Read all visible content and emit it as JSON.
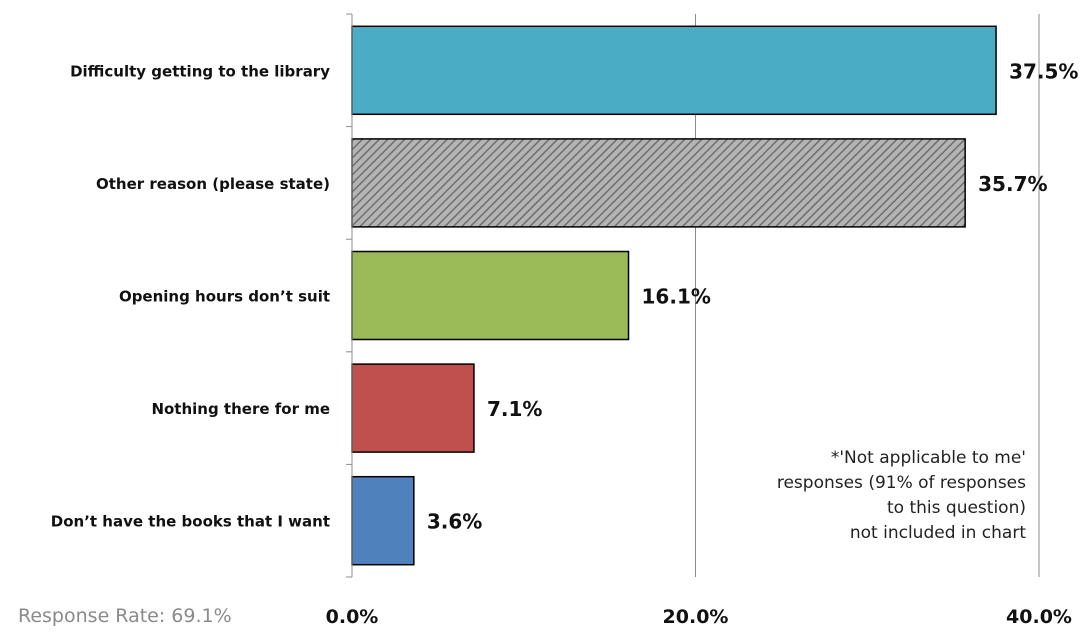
{
  "chart_data": {
    "type": "bar",
    "orientation": "horizontal",
    "categories": [
      "Difficulty getting to the library",
      "Other reason (please state)",
      "Opening hours don’t suit",
      "Nothing there for me",
      "Don’t have the books that I want"
    ],
    "values": [
      37.5,
      35.7,
      16.1,
      7.1,
      3.6
    ],
    "value_labels": [
      "37.5%",
      "35.7%",
      "16.1%",
      "7.1%",
      "3.6%"
    ],
    "bar_colors": [
      "#4BACC6",
      "#9A9A9A",
      "#9BBB59",
      "#C0504D",
      "#4F81BD"
    ],
    "bar_patterns": [
      "solid",
      "hatched",
      "solid",
      "solid",
      "solid"
    ],
    "xlim": [
      0,
      40
    ],
    "x_ticks": [
      0,
      20,
      40
    ],
    "x_tick_labels": [
      "0.0%",
      "20.0%",
      "40.0%"
    ],
    "grid": "vertical",
    "title": "",
    "xlabel": "",
    "ylabel": ""
  },
  "note": {
    "lines": [
      "*'Not applicable to me'",
      "responses (91% of responses",
      "to this question)",
      "not included in chart"
    ]
  },
  "footer": {
    "response_rate": "Response Rate: 69.1%"
  }
}
